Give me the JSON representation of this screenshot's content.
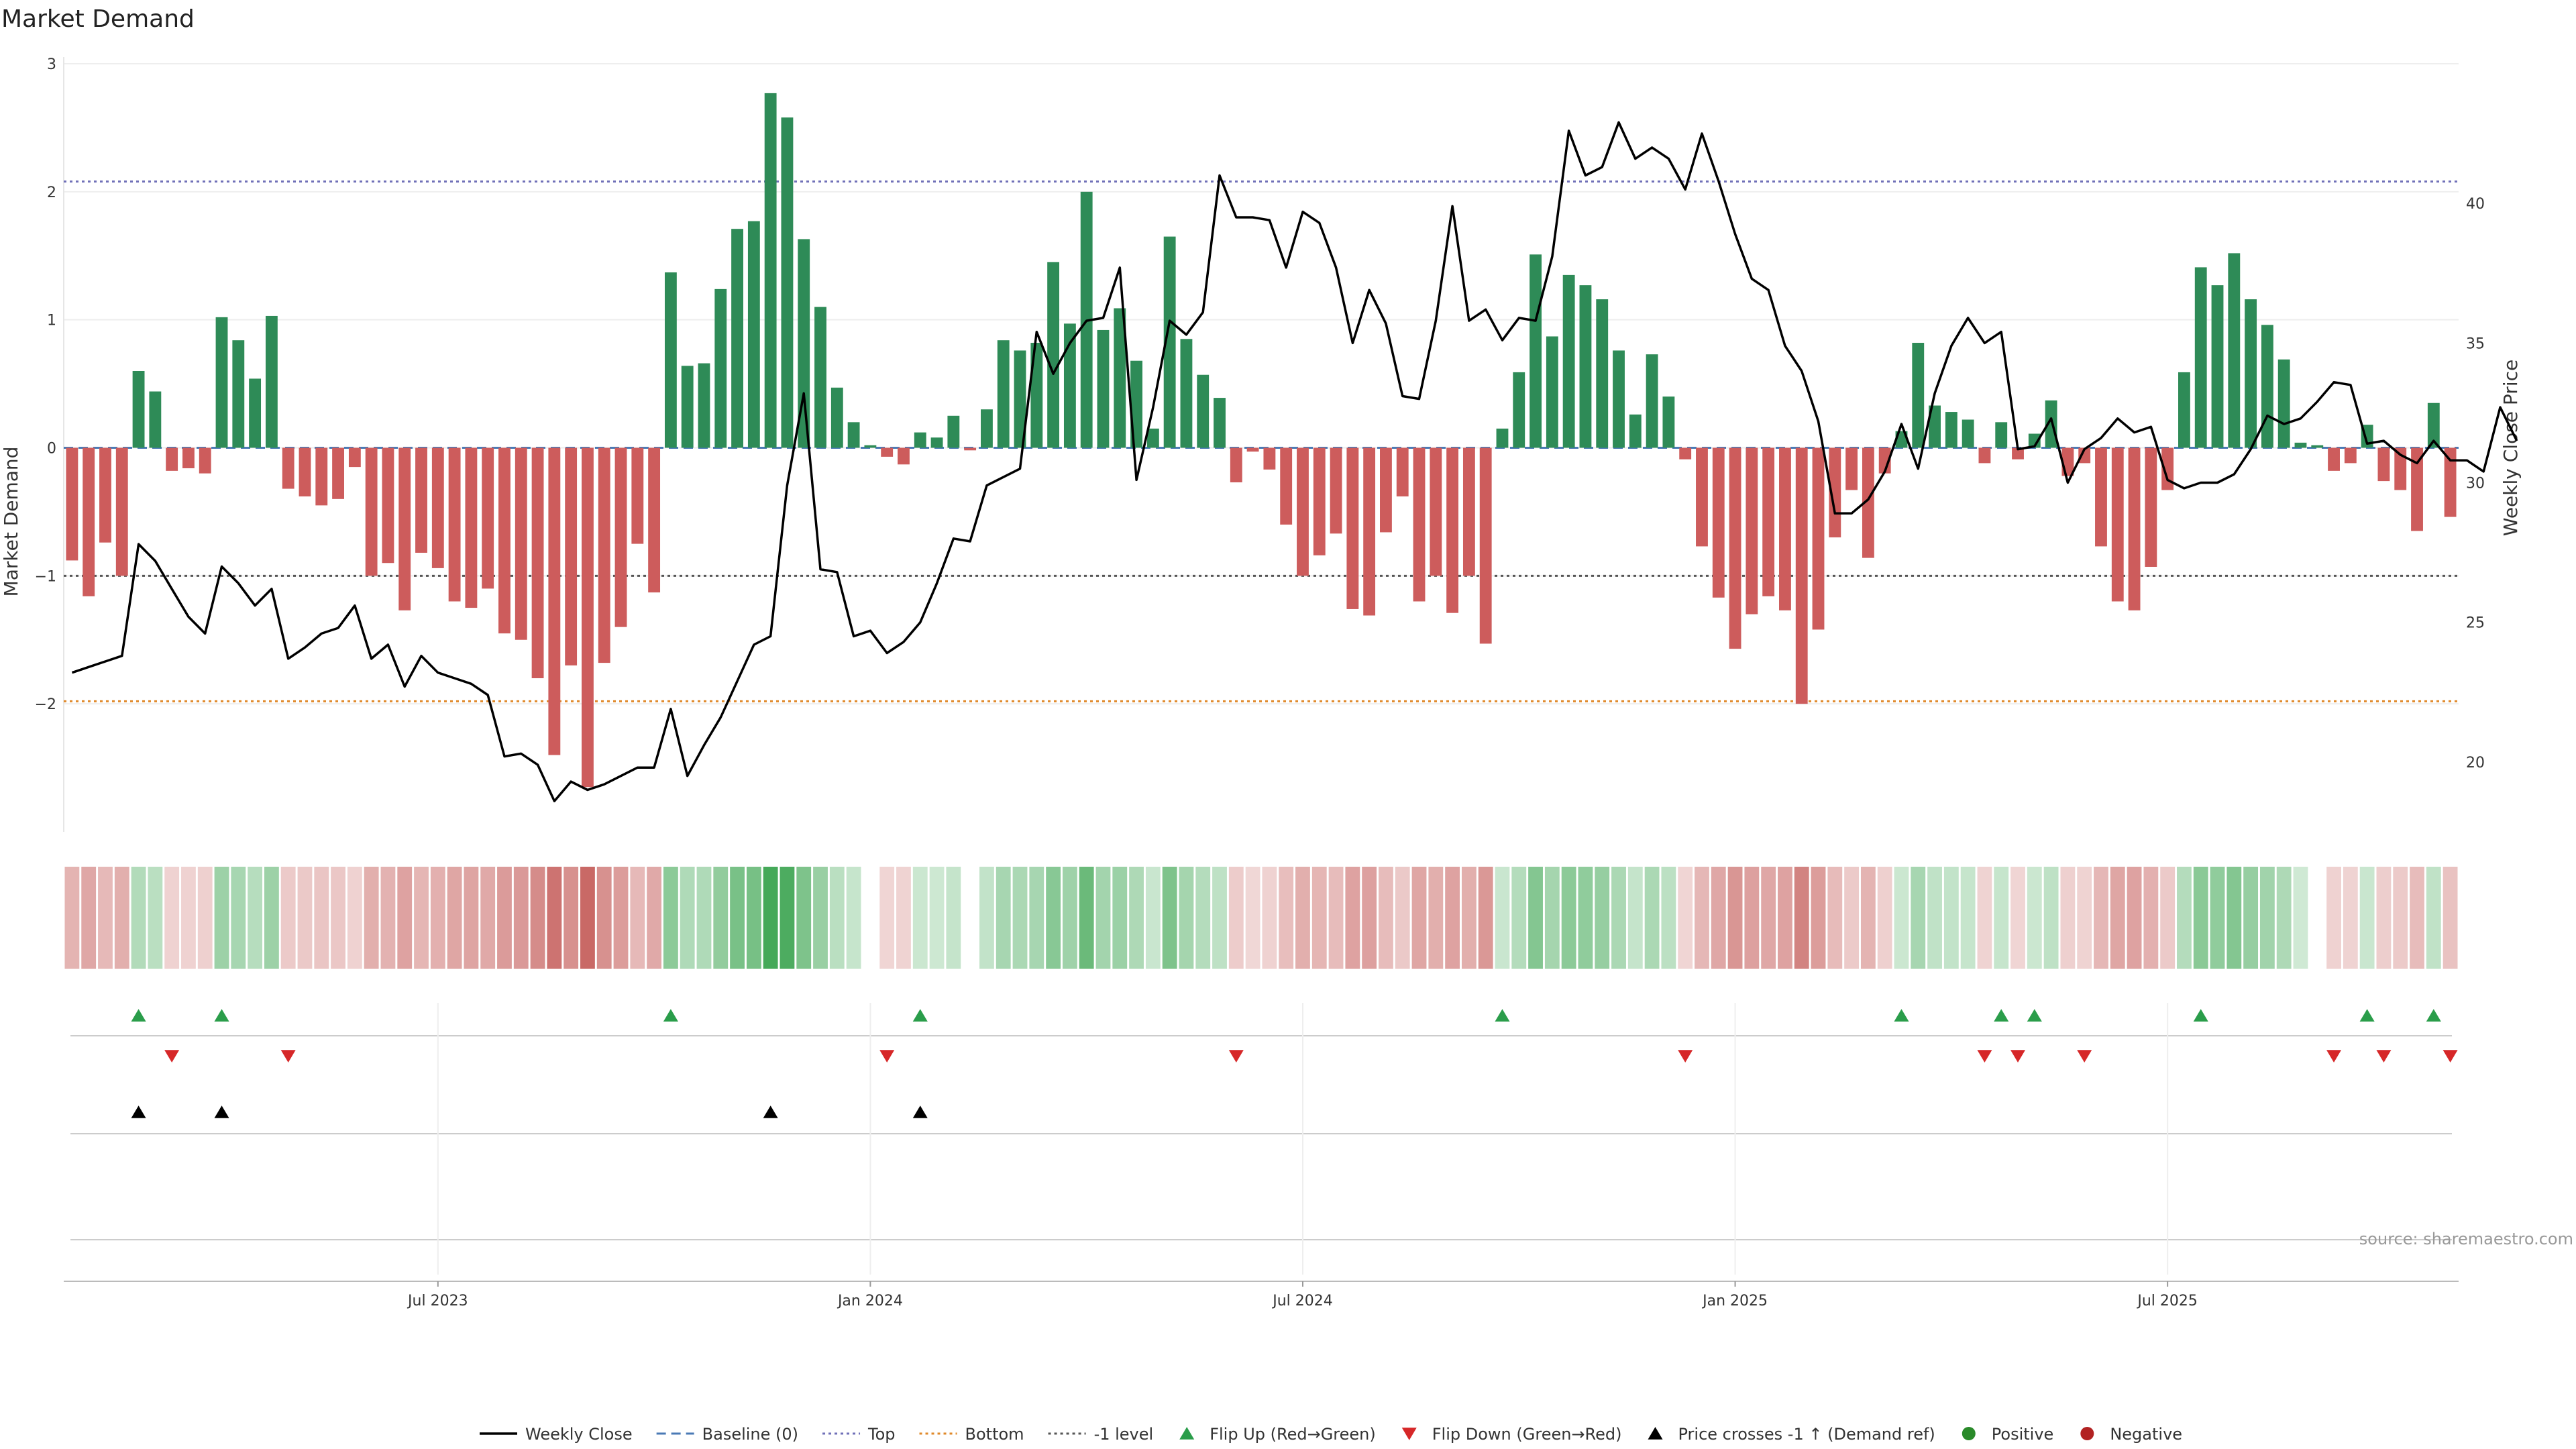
{
  "chart_data": {
    "type": "bar",
    "title": "Market Demand",
    "ylabel_left": "Market Demand",
    "ylabel_right": "Weekly Close Price",
    "source_note": "source: sharemaestro.com",
    "y_left": {
      "min": -3.0,
      "max": 3.0,
      "ticks": [
        3,
        2,
        1,
        0,
        -1,
        -2
      ],
      "tick_labels": [
        "3",
        "2",
        "1",
        "0",
        "−1",
        "−2"
      ]
    },
    "y_right": {
      "min": 17.5,
      "max": 45,
      "ticks": [
        40,
        35,
        30,
        25,
        20
      ],
      "tick_labels": [
        "40",
        "35",
        "30",
        "25",
        "20"
      ]
    },
    "x_axis": {
      "start_date": "2023-01-06",
      "week_count": 144,
      "tick_weeks": [
        22,
        48,
        74,
        100,
        126
      ],
      "tick_labels": [
        "Jul 2023",
        "Jan 2024",
        "Jul 2024",
        "Jan 2025",
        "Jul 2025"
      ]
    },
    "reference_lines": [
      {
        "name": "Baseline (0)",
        "value": 0,
        "color": "#4a7ab5",
        "style": "dashed"
      },
      {
        "name": "Top",
        "value": 2.08,
        "color": "#7070b8",
        "style": "dotted"
      },
      {
        "name": "Bottom",
        "value": -1.98,
        "color": "#e0892a",
        "style": "dotted"
      },
      {
        "name": "-1 level",
        "value": -1.0,
        "color": "#555555",
        "style": "dotted"
      }
    ],
    "demand": [
      -0.88,
      -1.16,
      -0.74,
      -1.0,
      0.6,
      0.44,
      -0.18,
      -0.16,
      -0.2,
      1.02,
      0.84,
      0.54,
      1.03,
      -0.32,
      -0.38,
      -0.45,
      -0.4,
      -0.15,
      -1.0,
      -0.9,
      -1.27,
      -0.82,
      -0.94,
      -1.2,
      -1.25,
      -1.1,
      -1.45,
      -1.5,
      -1.8,
      -2.4,
      -1.7,
      -2.65,
      -1.68,
      -1.4,
      -0.75,
      -1.13,
      1.37,
      0.64,
      0.66,
      1.24,
      1.71,
      1.77,
      2.77,
      2.58,
      1.63,
      1.1,
      0.47,
      0.2,
      0.02,
      -0.07,
      -0.13,
      0.12,
      0.08,
      0.25,
      -0.02,
      0.3,
      0.84,
      0.76,
      0.82,
      1.45,
      0.97,
      2.0,
      0.92,
      1.09,
      0.68,
      0.15,
      1.65,
      0.85,
      0.57,
      0.39,
      -0.27,
      -0.03,
      -0.17,
      -0.6,
      -1.0,
      -0.84,
      -0.67,
      -1.26,
      -1.31,
      -0.66,
      -0.38,
      -1.2,
      -1.0,
      -1.29,
      -1.0,
      -1.53,
      0.15,
      0.59,
      1.51,
      0.87,
      1.35,
      1.27,
      1.16,
      0.76,
      0.26,
      0.73,
      0.4,
      -0.09,
      -0.77,
      -1.17,
      -1.57,
      -1.3,
      -1.16,
      -1.27,
      -2.0,
      -1.42,
      -0.7,
      -0.33,
      -0.86,
      -0.2,
      0.13,
      0.82,
      0.33,
      0.28,
      0.22,
      -0.12,
      0.2,
      -0.09,
      0.11,
      0.37,
      -0.22,
      -0.12,
      -0.77,
      -1.2,
      -1.27,
      -0.93,
      -0.33,
      0.59,
      1.41,
      1.27,
      1.52,
      1.16,
      0.96,
      0.69,
      0.04,
      0.02,
      -0.18,
      -0.12,
      0.18,
      -0.26,
      -0.33,
      -0.65,
      0.35,
      -0.54
    ],
    "price": [
      23.2,
      23.4,
      23.6,
      23.8,
      27.8,
      27.2,
      26.2,
      25.2,
      24.6,
      27.0,
      26.4,
      25.6,
      26.2,
      23.7,
      24.1,
      24.6,
      24.8,
      25.6,
      23.7,
      24.2,
      22.7,
      23.8,
      23.2,
      23.0,
      22.8,
      22.4,
      20.2,
      20.3,
      19.9,
      18.6,
      19.3,
      19.0,
      19.2,
      19.5,
      19.8,
      19.8,
      21.9,
      19.5,
      20.6,
      21.6,
      22.9,
      24.2,
      24.5,
      29.9,
      33.2,
      26.9,
      26.8,
      24.5,
      24.7,
      23.9,
      24.3,
      25.0,
      26.4,
      28.0,
      27.9,
      29.9,
      30.2,
      30.5,
      35.4,
      33.9,
      35.0,
      35.8,
      35.9,
      37.7,
      30.1,
      32.7,
      35.8,
      35.3,
      36.1,
      41.0,
      39.5,
      39.5,
      39.4,
      37.7,
      39.7,
      39.3,
      37.7,
      35.0,
      36.9,
      35.7,
      33.1,
      33.0,
      35.8,
      39.9,
      35.8,
      36.2,
      35.1,
      35.9,
      35.8,
      38.1,
      42.6,
      41.0,
      41.3,
      42.9,
      41.6,
      42.0,
      41.6,
      40.5,
      42.5,
      40.8,
      38.9,
      37.3,
      36.9,
      34.9,
      34.0,
      32.2,
      28.9,
      28.9,
      29.4,
      30.4,
      32.1,
      30.5,
      33.2,
      34.9,
      35.9,
      35.0,
      35.4,
      31.2,
      31.3,
      32.3,
      30.0,
      31.2,
      31.6,
      32.3,
      31.8,
      32.0,
      30.1,
      29.8,
      30.0,
      30.0,
      30.3,
      31.2,
      32.4,
      32.1,
      32.3,
      32.9,
      33.6,
      33.5,
      31.4,
      31.5,
      31.0,
      30.7,
      31.5,
      30.8,
      30.8,
      30.4,
      32.7,
      31.5
    ],
    "flip_up_weeks": [
      4,
      9,
      36,
      51,
      86,
      110,
      116,
      118,
      128,
      138,
      142
    ],
    "flip_down_weeks": [
      6,
      13,
      49,
      70,
      97,
      115,
      117,
      121,
      136,
      139,
      143
    ],
    "price_cross_weeks": [
      4,
      9,
      42,
      51
    ],
    "colors": {
      "positive_bar": "#2e8b57",
      "negative_bar": "#cd5c5c",
      "price_line": "#000000",
      "flip_up": "#2a9d4a",
      "flip_down": "#d62728",
      "price_cross": "#000000",
      "positive_dot": "#2a8a2a",
      "negative_dot": "#b22222",
      "grid": "#eeeeee",
      "strip_line": "#cccccc"
    },
    "legend": [
      {
        "label": "Weekly Close",
        "kind": "line",
        "color": "#000000"
      },
      {
        "label": "Baseline (0)",
        "kind": "dashed",
        "color": "#4a7ab5"
      },
      {
        "label": "Top",
        "kind": "dotted",
        "color": "#7070b8"
      },
      {
        "label": "Bottom",
        "kind": "dotted",
        "color": "#e0892a"
      },
      {
        "label": "-1 level",
        "kind": "dotted",
        "color": "#555555"
      },
      {
        "label": "Flip Up (Red→Green)",
        "kind": "tri-up",
        "color": "#2a9d4a"
      },
      {
        "label": "Flip Down (Green→Red)",
        "kind": "tri-down",
        "color": "#d62728"
      },
      {
        "label": "Price crosses -1 ↑ (Demand ref)",
        "kind": "tri-up",
        "color": "#000000"
      },
      {
        "label": "Positive",
        "kind": "dot",
        "color": "#2a8a2a"
      },
      {
        "label": "Negative",
        "kind": "dot",
        "color": "#b22222"
      }
    ]
  }
}
